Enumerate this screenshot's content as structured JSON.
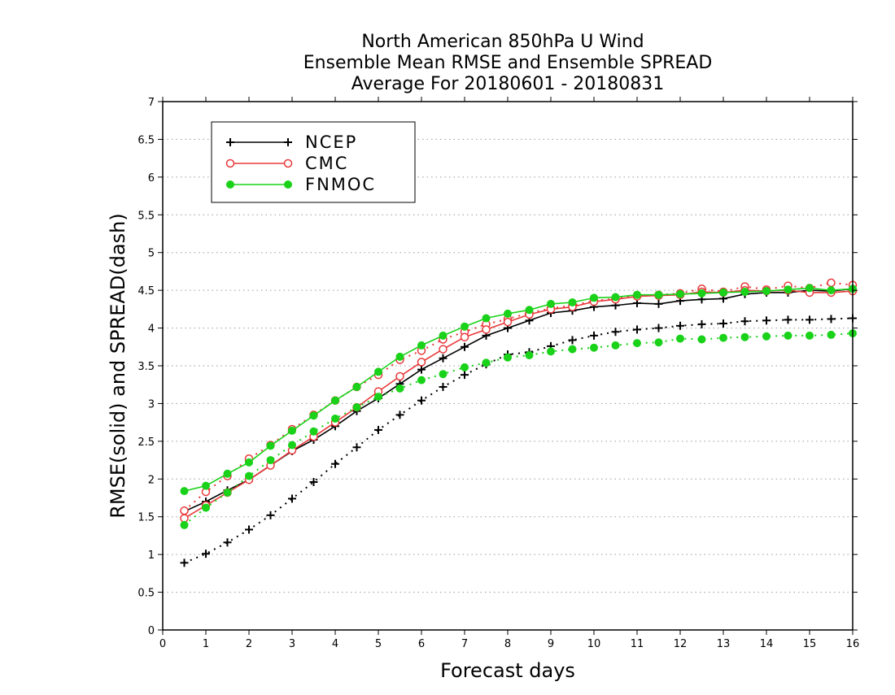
{
  "chart_data": {
    "type": "line",
    "title": [
      "North American 850hPa U Wind",
      "Ensemble Mean RMSE and Ensemble SPREAD",
      "Average For 20180601 - 20180831"
    ],
    "xlabel": "Forecast days",
    "ylabel": "RMSE(solid) and SPREAD(dash)",
    "xlim": [
      0,
      16
    ],
    "ylim": [
      0,
      7
    ],
    "xticks": [
      "0",
      "1",
      "2",
      "3",
      "4",
      "5",
      "6",
      "7",
      "8",
      "9",
      "10",
      "11",
      "12",
      "13",
      "14",
      "15",
      "16"
    ],
    "yticks": [
      "0",
      "0.5",
      "1",
      "1.5",
      "2",
      "2.5",
      "3",
      "3.5",
      "4",
      "4.5",
      "5",
      "5.5",
      "6",
      "6.5",
      "7"
    ],
    "grid": "horizontal dotted",
    "legend_position": "top-left",
    "x": [
      0.5,
      1,
      1.5,
      2,
      2.5,
      3,
      3.5,
      4,
      4.5,
      5,
      5.5,
      6,
      6.5,
      7,
      7.5,
      8,
      8.5,
      9,
      9.5,
      10,
      10.5,
      11,
      11.5,
      12,
      12.5,
      13,
      13.5,
      14,
      14.5,
      15,
      15.5,
      16
    ],
    "series": [
      {
        "name": "NCEP",
        "color": "#000000",
        "marker": "plus",
        "rmse": [
          1.57,
          1.7,
          1.85,
          1.99,
          2.18,
          2.37,
          2.52,
          2.7,
          2.9,
          3.07,
          3.26,
          3.45,
          3.6,
          3.75,
          3.9,
          4.0,
          4.1,
          4.2,
          4.23,
          4.28,
          4.3,
          4.33,
          4.32,
          4.36,
          4.38,
          4.39,
          4.45,
          4.47,
          4.47,
          4.5,
          4.49,
          4.52
        ],
        "spread": [
          0.89,
          1.01,
          1.16,
          1.33,
          1.52,
          1.74,
          1.96,
          2.2,
          2.42,
          2.65,
          2.85,
          3.04,
          3.22,
          3.38,
          3.52,
          3.65,
          3.68,
          3.76,
          3.84,
          3.9,
          3.95,
          3.98,
          4.0,
          4.03,
          4.05,
          4.06,
          4.09,
          4.1,
          4.11,
          4.11,
          4.12,
          4.13
        ]
      },
      {
        "name": "CMC",
        "color": "#e8383a",
        "marker": "open-circle",
        "rmse": [
          1.48,
          1.65,
          1.82,
          1.99,
          2.18,
          2.38,
          2.56,
          2.75,
          2.95,
          3.16,
          3.36,
          3.55,
          3.72,
          3.88,
          3.98,
          4.08,
          4.18,
          4.25,
          4.28,
          4.35,
          4.38,
          4.42,
          4.43,
          4.44,
          4.48,
          4.47,
          4.5,
          4.49,
          4.5,
          4.47,
          4.47,
          4.49
        ],
        "spread": [
          1.58,
          1.83,
          2.04,
          2.27,
          2.45,
          2.66,
          2.85,
          3.04,
          3.22,
          3.38,
          3.58,
          3.7,
          3.85,
          3.95,
          4.05,
          4.12,
          4.2,
          4.26,
          4.3,
          4.36,
          4.39,
          4.43,
          4.44,
          4.46,
          4.52,
          4.48,
          4.55,
          4.51,
          4.56,
          4.53,
          4.6,
          4.57
        ]
      },
      {
        "name": "FNMOC",
        "color": "#19d219",
        "marker": "filled-circle",
        "rmse": [
          1.84,
          1.91,
          2.07,
          2.22,
          2.44,
          2.64,
          2.84,
          3.04,
          3.22,
          3.42,
          3.62,
          3.77,
          3.9,
          4.02,
          4.13,
          4.19,
          4.24,
          4.32,
          4.34,
          4.4,
          4.41,
          4.44,
          4.44,
          4.45,
          4.46,
          4.47,
          4.48,
          4.49,
          4.51,
          4.53,
          4.5,
          4.52
        ],
        "spread": [
          1.39,
          1.62,
          1.82,
          2.04,
          2.25,
          2.45,
          2.63,
          2.8,
          2.95,
          3.09,
          3.2,
          3.31,
          3.39,
          3.48,
          3.54,
          3.61,
          3.64,
          3.69,
          3.72,
          3.74,
          3.77,
          3.8,
          3.81,
          3.86,
          3.85,
          3.87,
          3.88,
          3.89,
          3.9,
          3.9,
          3.91,
          3.93
        ]
      }
    ]
  }
}
